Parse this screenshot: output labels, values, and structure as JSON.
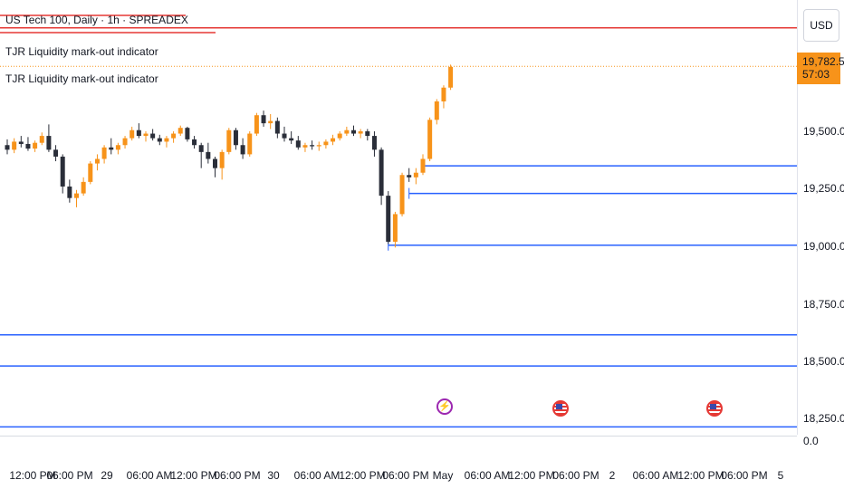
{
  "header": {
    "symbol_title": "US Tech 100, Daily · 1h · SPREADEX",
    "indicator_1": "TJR Liquidity mark-out indicator",
    "indicator_2": "TJR Liquidity mark-out indicator"
  },
  "price_axis": {
    "currency": "USD",
    "ticks": [
      "19,500.0",
      "19,250.0",
      "19,000.0",
      "18,750.0",
      "18,500.0",
      "18,250.0",
      "0.0"
    ],
    "last_price": "19,782.5",
    "countdown": "57:03"
  },
  "time_axis": {
    "labels": [
      "12:00 PM",
      "06:00 PM",
      "29",
      "06:00 AM",
      "12:00 PM",
      "06:00 PM",
      "30",
      "06:00 AM",
      "12:00 PM",
      "06:00 PM",
      "May",
      "06:00 AM",
      "12:00 PM",
      "06:00 PM",
      "2",
      "06:00 AM",
      "12:00 PM",
      "06:00 PM",
      "5"
    ]
  },
  "events": [
    {
      "name": "bolt-event-icon",
      "color": "#9c27b0"
    },
    {
      "name": "us-flag-event-icon",
      "color": "#e53935"
    },
    {
      "name": "us-flag-event-icon",
      "color": "#e53935"
    }
  ],
  "colors": {
    "up_candle": "#f7931a",
    "down_candle": "#2a2e39",
    "liquidity_low": "#2962ff",
    "liquidity_high": "#e53935",
    "last_price_line": "#f7931a"
  },
  "chart_data": {
    "type": "candlestick",
    "title": "US Tech 100, Daily · 1h · SPREADEX",
    "ylim": [
      18170,
      20000
    ],
    "candles": [
      [
        19440,
        19465,
        19400,
        19420
      ],
      [
        19420,
        19470,
        19405,
        19455
      ],
      [
        19455,
        19480,
        19430,
        19445
      ],
      [
        19445,
        19475,
        19415,
        19425
      ],
      [
        19425,
        19460,
        19410,
        19450
      ],
      [
        19450,
        19495,
        19440,
        19480
      ],
      [
        19480,
        19530,
        19410,
        19420
      ],
      [
        19420,
        19440,
        19370,
        19390
      ],
      [
        19390,
        19400,
        19230,
        19260
      ],
      [
        19260,
        19290,
        19190,
        19210
      ],
      [
        19210,
        19245,
        19170,
        19230
      ],
      [
        19230,
        19300,
        19220,
        19280
      ],
      [
        19280,
        19370,
        19270,
        19360
      ],
      [
        19360,
        19400,
        19330,
        19380
      ],
      [
        19380,
        19440,
        19360,
        19430
      ],
      [
        19430,
        19470,
        19400,
        19420
      ],
      [
        19420,
        19450,
        19400,
        19440
      ],
      [
        19440,
        19480,
        19425,
        19470
      ],
      [
        19470,
        19520,
        19460,
        19505
      ],
      [
        19505,
        19535,
        19470,
        19480
      ],
      [
        19480,
        19500,
        19455,
        19490
      ],
      [
        19490,
        19510,
        19460,
        19470
      ],
      [
        19470,
        19485,
        19440,
        19455
      ],
      [
        19455,
        19480,
        19430,
        19470
      ],
      [
        19470,
        19500,
        19450,
        19490
      ],
      [
        19490,
        19525,
        19480,
        19515
      ],
      [
        19515,
        19520,
        19455,
        19465
      ],
      [
        19465,
        19480,
        19425,
        19440
      ],
      [
        19440,
        19450,
        19340,
        19410
      ],
      [
        19410,
        19450,
        19360,
        19380
      ],
      [
        19380,
        19390,
        19300,
        19340
      ],
      [
        19340,
        19420,
        19290,
        19410
      ],
      [
        19410,
        19515,
        19400,
        19505
      ],
      [
        19505,
        19515,
        19420,
        19440
      ],
      [
        19440,
        19470,
        19380,
        19400
      ],
      [
        19400,
        19500,
        19390,
        19490
      ],
      [
        19490,
        19580,
        19480,
        19570
      ],
      [
        19570,
        19590,
        19520,
        19535
      ],
      [
        19535,
        19575,
        19510,
        19545
      ],
      [
        19545,
        19560,
        19470,
        19490
      ],
      [
        19490,
        19520,
        19455,
        19470
      ],
      [
        19470,
        19500,
        19445,
        19460
      ],
      [
        19460,
        19480,
        19420,
        19430
      ],
      [
        19430,
        19450,
        19410,
        19440
      ],
      [
        19440,
        19460,
        19420,
        19435
      ],
      [
        19435,
        19455,
        19415,
        19440
      ],
      [
        19440,
        19465,
        19425,
        19455
      ],
      [
        19455,
        19485,
        19440,
        19470
      ],
      [
        19470,
        19500,
        19460,
        19490
      ],
      [
        19490,
        19520,
        19480,
        19505
      ],
      [
        19505,
        19525,
        19480,
        19490
      ],
      [
        19490,
        19510,
        19470,
        19500
      ],
      [
        19500,
        19510,
        19460,
        19480
      ],
      [
        19480,
        19500,
        19390,
        19420
      ],
      [
        19420,
        19430,
        19180,
        19220
      ],
      [
        19220,
        19240,
        19010,
        19020
      ],
      [
        19020,
        19150,
        18995,
        19140
      ],
      [
        19140,
        19320,
        19130,
        19310
      ],
      [
        19310,
        19340,
        19280,
        19300
      ],
      [
        19300,
        19340,
        19270,
        19320
      ],
      [
        19320,
        19400,
        19310,
        19380
      ],
      [
        19380,
        19560,
        19370,
        19550
      ],
      [
        19550,
        19640,
        19530,
        19630
      ],
      [
        19630,
        19700,
        19600,
        19690
      ],
      [
        19690,
        19790,
        19680,
        19780
      ]
    ],
    "liquidity_levels": [
      {
        "price": 19950,
        "side": "high"
      },
      {
        "price": 19350,
        "side": "low",
        "from_bar": 60
      },
      {
        "price": 19230,
        "side": "low",
        "from_bar": 58
      },
      {
        "price": 19005,
        "side": "low",
        "from_bar": 55
      },
      {
        "price": 18615,
        "side": "low"
      },
      {
        "price": 18480,
        "side": "low"
      },
      {
        "price": 18215,
        "side": "low"
      }
    ],
    "last_price": 19782.5
  }
}
